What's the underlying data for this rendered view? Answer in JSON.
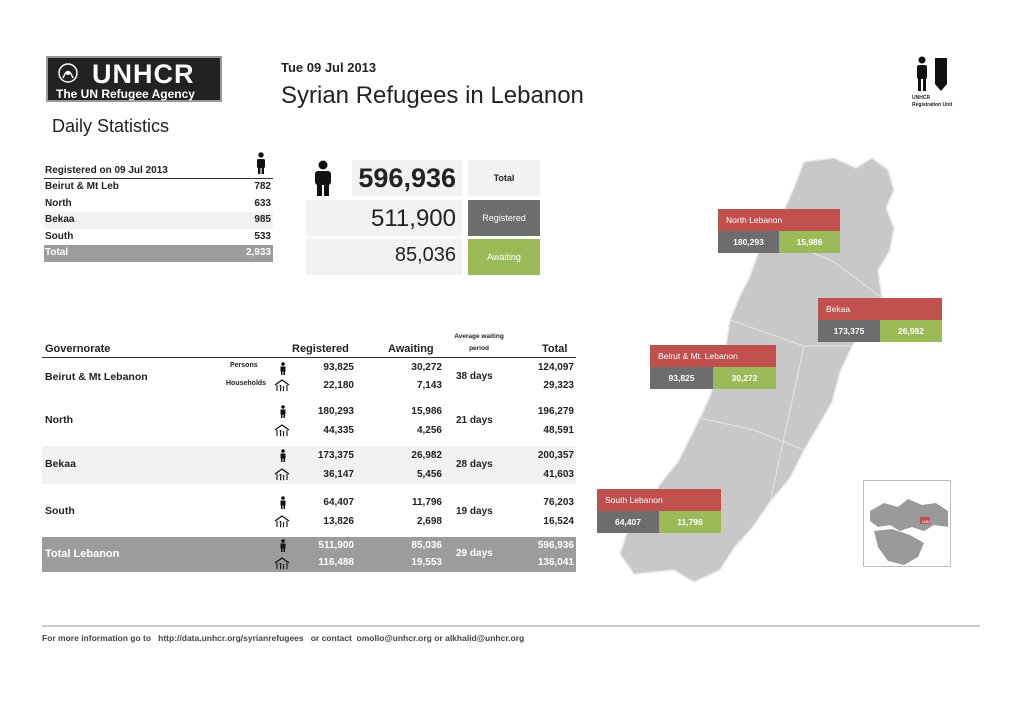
{
  "header": {
    "logo_big": "UNHCR",
    "logo_small": "The UN Refugee Agency",
    "date": "Tue 09 Jul 2013",
    "title": "Syrian Refugees in Lebanon",
    "subtitle": "Daily Statistics",
    "unit_line1": "UNHCR",
    "unit_line2": "Registration Unit"
  },
  "daily": {
    "heading": "Registered on 09 Jul 2013",
    "rows": [
      {
        "name": "Beirut & Mt Leb",
        "value": "782"
      },
      {
        "name": "North",
        "value": "633"
      },
      {
        "name": "Bekaa",
        "value": "985"
      },
      {
        "name": "South",
        "value": "533"
      }
    ],
    "total_label": "Total",
    "total_value": "2,933"
  },
  "headline": {
    "total_value": "596,936",
    "total_label": "Total",
    "registered_value": "511,900",
    "registered_label": "Registered",
    "awaiting_value": "85,036",
    "awaiting_label": "Awaiting"
  },
  "table": {
    "headers": {
      "governorate": "Governorate",
      "registered": "Registered",
      "awaiting": "Awaiting",
      "avg_wait_1": "Average waiting",
      "avg_wait_2": "period",
      "total": "Total"
    },
    "persons_tag": "Persons",
    "households_tag": "Households",
    "rows": [
      {
        "name": "Beirut & Mt Lebanon",
        "reg_p": "93,825",
        "reg_h": "22,180",
        "aw_p": "30,272",
        "aw_h": "7,143",
        "wait": "38 days",
        "tot_p": "124,097",
        "tot_h": "29,323"
      },
      {
        "name": "North",
        "reg_p": "180,293",
        "reg_h": "44,335",
        "aw_p": "15,986",
        "aw_h": "4,256",
        "wait": "21 days",
        "tot_p": "196,279",
        "tot_h": "48,591"
      },
      {
        "name": "Bekaa",
        "reg_p": "173,375",
        "reg_h": "36,147",
        "aw_p": "26,982",
        "aw_h": "5,456",
        "wait": "28 days",
        "tot_p": "200,357",
        "tot_h": "41,603"
      },
      {
        "name": "South",
        "reg_p": "64,407",
        "reg_h": "13,826",
        "aw_p": "11,796",
        "aw_h": "2,698",
        "wait": "19 days",
        "tot_p": "76,203",
        "tot_h": "16,524"
      }
    ],
    "total": {
      "name": "Total Lebanon",
      "reg_p": "511,900",
      "reg_h": "116,488",
      "aw_p": "85,036",
      "aw_h": "19,553",
      "wait": "29 days",
      "tot_p": "596,936",
      "tot_h": "136,041"
    }
  },
  "map": {
    "callouts": [
      {
        "name": "North Lebanon",
        "registered": "180,293",
        "awaiting": "15,986"
      },
      {
        "name": "Bekaa",
        "registered": "173,375",
        "awaiting": "26,982"
      },
      {
        "name": "Beirut & Mt. Lebanon",
        "registered": "93,825",
        "awaiting": "30,272"
      },
      {
        "name": "South Lebanon",
        "registered": "64,407",
        "awaiting": "11,796"
      }
    ],
    "inset_label": "LBN"
  },
  "footer": {
    "text": "For more information go to   http://data.unhcr.org/syrianrefugees   or contact  omollo@unhcr.org or alkhalid@unhcr.org"
  },
  "colors": {
    "red": "#c0504d",
    "green": "#9bbb59",
    "dark_gray": "#6d6d6d",
    "gray": "#9c9c9c",
    "light": "#f2f2f2"
  }
}
